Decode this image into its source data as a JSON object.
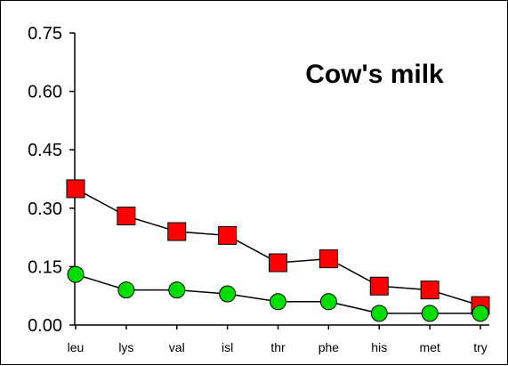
{
  "chart_data": {
    "type": "line",
    "title": "Cow's milk",
    "xlabel": "",
    "ylabel": "",
    "categories": [
      "leu",
      "lys",
      "val",
      "isl",
      "thr",
      "phe",
      "his",
      "met",
      "try"
    ],
    "ylim": [
      0,
      0.75
    ],
    "yticks": [
      "0.00",
      "0.15",
      "0.30",
      "0.45",
      "0.60",
      "0.75"
    ],
    "grid": false,
    "legend": "none",
    "series": [
      {
        "marker": "square",
        "color": "#ff0000",
        "values": [
          0.35,
          0.28,
          0.24,
          0.23,
          0.16,
          0.17,
          0.1,
          0.09,
          0.05
        ]
      },
      {
        "marker": "circle",
        "color": "#00dd00",
        "values": [
          0.13,
          0.09,
          0.09,
          0.08,
          0.06,
          0.06,
          0.03,
          0.03,
          0.03
        ]
      }
    ]
  }
}
